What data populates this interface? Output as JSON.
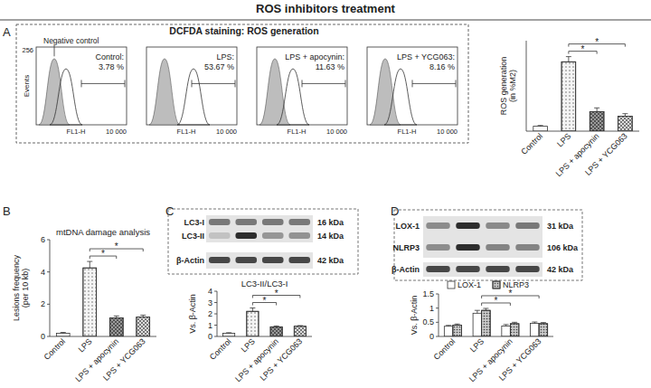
{
  "figure": {
    "title": "ROS inhibitors treatment",
    "panel_labels": [
      "A",
      "B",
      "C",
      "D"
    ]
  },
  "flow": {
    "title": "DCFDA staining: ROS generation",
    "y_label": "Events",
    "y_max_label": "256",
    "x_label": "FL1-H",
    "x_max_label": "10 000",
    "negative_control": "Negative control",
    "conditions": [
      {
        "name": "Control:",
        "percent": "3.78 %"
      },
      {
        "name": "LPS:",
        "percent": "53.67 %"
      },
      {
        "name": "LPS + apocynin:",
        "percent": "11.63 %"
      },
      {
        "name": "LPS + YCG063:",
        "percent": "8.16 %"
      }
    ]
  },
  "blots": [
    {
      "rows": [
        {
          "label": "LC3-I",
          "size": "16 kDa"
        },
        {
          "label": "LC3-II",
          "size": "14 kDa"
        },
        {
          "label": "β-Actin",
          "size": "42 kDa"
        }
      ]
    },
    {
      "rows": [
        {
          "label": "LOX-1",
          "size": "31 kDa"
        },
        {
          "label": "NLRP3",
          "size": "106 kDa"
        },
        {
          "label": "β-Actin",
          "size": "42 kDa"
        }
      ]
    }
  ],
  "chart_data": [
    {
      "type": "bar",
      "y_label": [
        "ROS generation",
        "(in %M2)"
      ],
      "categories": [
        "Control",
        "LPS",
        "LPS + apocynin",
        "LPS + YCG063"
      ],
      "values": [
        3.78,
        53.67,
        15,
        11.5
      ],
      "error": [
        0.6,
        4,
        3,
        2
      ],
      "colors": [
        "#ffffff",
        "#f4f4f4",
        "#9a9a9a",
        "#dddddd"
      ],
      "ylim": [
        0,
        70
      ],
      "tick_labels": "x",
      "grid": false,
      "significance": [
        {
          "from": "LPS",
          "to": "LPS + apocynin",
          "label": "*"
        },
        {
          "from": "LPS",
          "to": "LPS + YCG063",
          "label": "*"
        }
      ]
    },
    {
      "type": "bar",
      "title": "mtDNA damage analysis",
      "y_label": [
        "Lesions frequency",
        "(per 10 kb)"
      ],
      "categories": [
        "Control",
        "LPS",
        "LPS + apocynin",
        "LPS + YCG063"
      ],
      "values": [
        0.2,
        4.25,
        1.15,
        1.2
      ],
      "error": [
        0.05,
        0.4,
        0.12,
        0.12
      ],
      "colors": [
        "#ffffff",
        "#f4f4f4",
        "#9a9a9a",
        "#dddddd"
      ],
      "ylim": [
        0,
        6
      ],
      "yticks": [
        0,
        2,
        4,
        6
      ],
      "grid": false,
      "significance": [
        {
          "from": "LPS",
          "to": "LPS + apocynin",
          "label": "*"
        },
        {
          "from": "LPS",
          "to": "LPS + YCG063",
          "label": "*"
        }
      ]
    },
    {
      "type": "bar",
      "title": "LC3-II/LC3-I",
      "y_label": [
        "Vs. β-Actin"
      ],
      "categories": [
        "Control",
        "LPS",
        "LPS + apocynin",
        "LPS + YCG063"
      ],
      "values": [
        0.28,
        2.22,
        0.85,
        0.9
      ],
      "error": [
        0.05,
        0.3,
        0.08,
        0.06
      ],
      "colors": [
        "#ffffff",
        "#f4f4f4",
        "#9a9a9a",
        "#dddddd"
      ],
      "ylim": [
        0,
        4
      ],
      "yticks": [
        0,
        1,
        2,
        3,
        4
      ],
      "grid": false,
      "significance": [
        {
          "from": "LPS",
          "to": "LPS + apocynin",
          "label": "*"
        },
        {
          "from": "LPS",
          "to": "LPS + YCG063",
          "label": "*"
        }
      ]
    },
    {
      "type": "bar",
      "y_label": [
        "Vs. β-Actin"
      ],
      "categories": [
        "Control",
        "LPS",
        "LPS + apocynin",
        "LPS + YCG063"
      ],
      "series": [
        {
          "name": "LOX-1",
          "color": "#ffffff",
          "values": [
            0.36,
            0.82,
            0.37,
            0.46
          ],
          "error": [
            0.03,
            0.1,
            0.05,
            0.05
          ]
        },
        {
          "name": "NLRP3",
          "color": "#c8c8c8",
          "values": [
            0.4,
            0.92,
            0.45,
            0.45
          ],
          "error": [
            0.04,
            0.07,
            0.05,
            0.04
          ]
        }
      ],
      "ylim": [
        0,
        1.5
      ],
      "yticks": [
        0,
        0.5,
        1,
        1.5
      ],
      "grid": false,
      "legend": "top",
      "significance": [
        {
          "from": "LPS",
          "to": "LPS + apocynin",
          "label": "*"
        },
        {
          "from": "LPS",
          "to": "LPS + YCG063",
          "label": "*"
        }
      ]
    }
  ]
}
